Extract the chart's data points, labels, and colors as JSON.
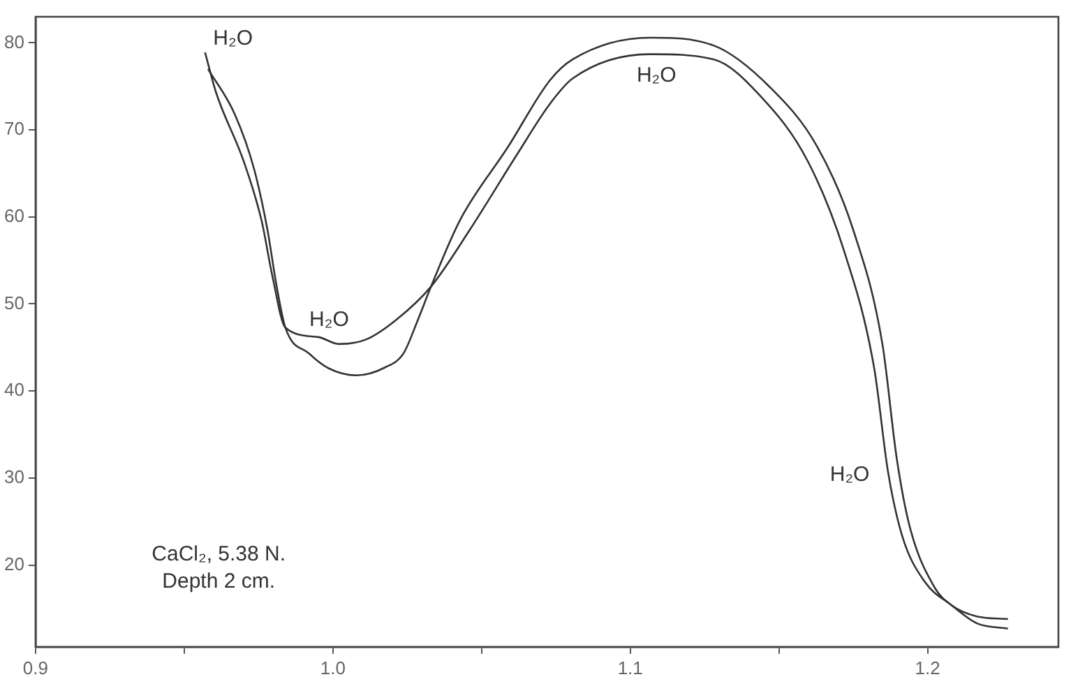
{
  "chart_data": {
    "type": "line",
    "grid": false,
    "legend": false,
    "marker": "none",
    "line_style": "solid",
    "xlim": [
      0.9,
      1.244
    ],
    "ylim": [
      10.6,
      83
    ],
    "xticks": [
      0.9,
      {
        "value": 0.95,
        "label": null
      },
      {
        "value": 1,
        "label": "1.0"
      },
      {
        "value": 1.05,
        "label": null
      },
      1.1,
      {
        "value": 1.15,
        "label": null
      },
      1.2
    ],
    "yticks": [
      20,
      30,
      40,
      50,
      60,
      70,
      80
    ],
    "series": [
      {
        "color": "#333333",
        "x": [
          0.957,
          0.9607,
          0.97,
          0.976,
          0.9796,
          0.984,
          0.995,
          1.002,
          1.011,
          1.021,
          1.033,
          1.046,
          1.0616,
          1.073,
          1.0806,
          1.1066,
          1.128,
          1.144,
          1.1597,
          1.172,
          1.182,
          1.1867,
          1.1915,
          1.199,
          1.208,
          1.2166,
          1.227
        ],
        "values": [
          78.9,
          74.3,
          66.4,
          59.6,
          53.3,
          47.3,
          46.2,
          45.4,
          45.9,
          48.1,
          52.0,
          58.5,
          67.0,
          73.0,
          75.9,
          78.7,
          78.1,
          73.8,
          66.4,
          56.0,
          42.7,
          30.7,
          23.3,
          18.1,
          15.4,
          13.3,
          12.7
        ]
      },
      {
        "color": "#333333",
        "x": [
          0.958,
          0.967,
          0.9735,
          0.978,
          0.981,
          0.984,
          0.992,
          0.9986,
          1.008,
          1.0175,
          1.0237,
          1.0285,
          1.033,
          1.0427,
          1.0588,
          1.073,
          1.0806,
          1.1066,
          1.128,
          1.147,
          1.163,
          1.175,
          1.1848,
          1.1896,
          1.194,
          1.2024,
          1.208,
          1.2166,
          1.227
        ],
        "values": [
          77.0,
          71.8,
          65.5,
          58.5,
          52.2,
          47.3,
          44.3,
          42.6,
          41.8,
          42.7,
          44.3,
          48.1,
          52.0,
          59.6,
          68.0,
          75.7,
          78.1,
          80.6,
          79.7,
          74.9,
          68.0,
          58.5,
          45.4,
          32.3,
          24.4,
          17.4,
          15.4,
          14.1,
          13.8
        ]
      }
    ],
    "annotations": [
      "H₂O",
      "H₂O",
      "H₂O",
      "H₂O",
      "CaCl₂, 5.38 N.",
      "Depth 2 cm."
    ]
  }
}
